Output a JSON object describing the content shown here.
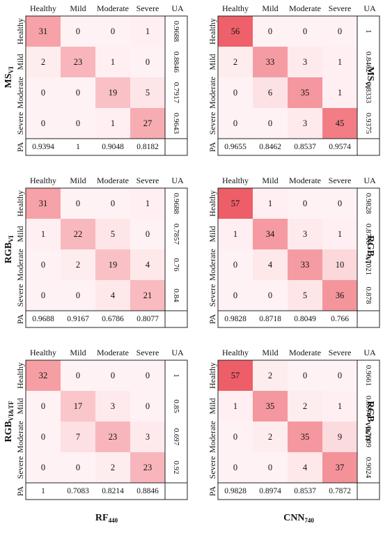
{
  "classes": [
    "Healthy",
    "Mild",
    "Moderate",
    "Severe"
  ],
  "ua_label": "UA",
  "pa_label": "PA",
  "columns": [
    {
      "label": "RF",
      "sub": "440"
    },
    {
      "label": "CNN",
      "sub": "740"
    }
  ],
  "rows": [
    {
      "label": "MS",
      "sub": "VI"
    },
    {
      "label": "RGB",
      "sub": "VI"
    },
    {
      "label": "RGB",
      "sub": "VI&TF"
    }
  ],
  "chart_data": [
    {
      "type": "heatmap",
      "model": "RF440",
      "dataset": "MSVI",
      "matrix": [
        [
          31,
          0,
          0,
          1
        ],
        [
          2,
          23,
          1,
          0
        ],
        [
          0,
          0,
          19,
          5
        ],
        [
          0,
          0,
          1,
          27
        ]
      ],
      "ua": [
        "0.9688",
        "0.8846",
        "0.7917",
        "0.9643"
      ],
      "pa": [
        "0.9394",
        "1",
        "0.9048",
        "0.8182"
      ]
    },
    {
      "type": "heatmap",
      "model": "CNN740",
      "dataset": "MSVI",
      "matrix": [
        [
          56,
          0,
          0,
          0
        ],
        [
          2,
          33,
          3,
          1
        ],
        [
          0,
          6,
          35,
          1
        ],
        [
          0,
          0,
          3,
          45
        ]
      ],
      "ua": [
        "1",
        "0.8462",
        "0.8333",
        "0.9375"
      ],
      "pa": [
        "0.9655",
        "0.8462",
        "0.8537",
        "0.9574"
      ]
    },
    {
      "type": "heatmap",
      "model": "RF440",
      "dataset": "RGBVI",
      "matrix": [
        [
          31,
          0,
          0,
          1
        ],
        [
          1,
          22,
          5,
          0
        ],
        [
          0,
          2,
          19,
          4
        ],
        [
          0,
          0,
          4,
          21
        ]
      ],
      "ua": [
        "0.9688",
        "0.7857",
        "0.76",
        "0.84"
      ],
      "pa": [
        "0.9688",
        "0.9167",
        "0.6786",
        "0.8077"
      ]
    },
    {
      "type": "heatmap",
      "model": "CNN740",
      "dataset": "RGBVI",
      "matrix": [
        [
          57,
          1,
          0,
          0
        ],
        [
          1,
          34,
          3,
          1
        ],
        [
          0,
          4,
          33,
          10
        ],
        [
          0,
          0,
          5,
          36
        ]
      ],
      "ua": [
        "0.9828",
        "0.8718",
        "0.7021",
        "0.878"
      ],
      "pa": [
        "0.9828",
        "0.8718",
        "0.8049",
        "0.766"
      ]
    },
    {
      "type": "heatmap",
      "model": "RF440",
      "dataset": "RGBVI&TF",
      "matrix": [
        [
          32,
          0,
          0,
          0
        ],
        [
          0,
          17,
          3,
          0
        ],
        [
          0,
          7,
          23,
          3
        ],
        [
          0,
          0,
          2,
          23
        ]
      ],
      "ua": [
        "1",
        "0.85",
        "0.697",
        "0.92"
      ],
      "pa": [
        "1",
        "0.7083",
        "0.8214",
        "0.8846"
      ]
    },
    {
      "type": "heatmap",
      "model": "CNN740",
      "dataset": "RGBVI&TF",
      "matrix": [
        [
          57,
          2,
          0,
          0
        ],
        [
          1,
          35,
          2,
          1
        ],
        [
          0,
          2,
          35,
          9
        ],
        [
          0,
          0,
          4,
          37
        ]
      ],
      "ua": [
        "0.9661",
        "0.8974",
        "0.7609",
        "0.9024"
      ],
      "pa": [
        "0.9828",
        "0.8974",
        "0.8537",
        "0.7872"
      ]
    }
  ]
}
